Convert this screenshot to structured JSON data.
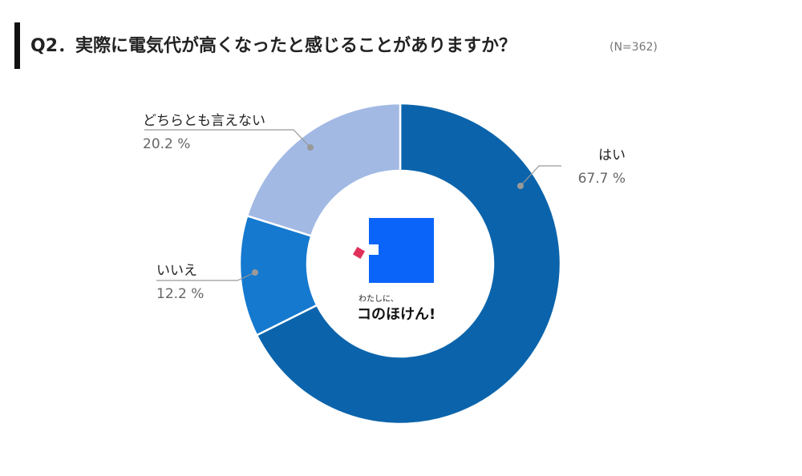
{
  "chart_data": {
    "type": "donut",
    "title": "Q2．実際に電気代が高くなったと感じることがありますか？",
    "subtitle": "(N=362)",
    "categories": [
      "はい",
      "いいえ",
      "どちらとも言えない"
    ],
    "values": [
      67.7,
      12.2,
      20.2
    ],
    "value_labels": [
      "67.7 %",
      "12.2 %",
      "20.2 %"
    ],
    "colors": [
      "#0b64ab",
      "#1479cf",
      "#a2b9e4"
    ],
    "logo": {
      "line1": "わたしに、",
      "line2": "コのほけん!"
    }
  }
}
